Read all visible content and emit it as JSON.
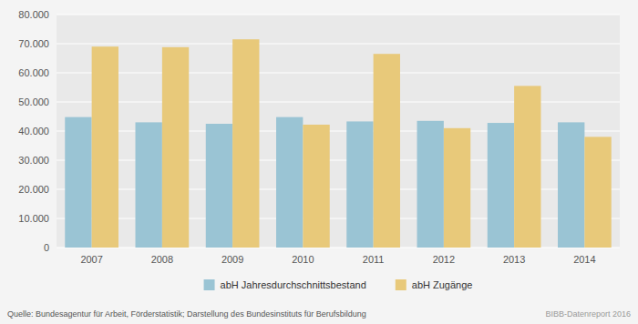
{
  "chart_data": {
    "type": "bar",
    "categories": [
      "2007",
      "2008",
      "2009",
      "2010",
      "2011",
      "2012",
      "2013",
      "2014"
    ],
    "series": [
      {
        "name": "abH Jahresdurchschnittsbestand",
        "color": "#9ac4d4",
        "values": [
          44800,
          43000,
          42500,
          44800,
          43300,
          43500,
          42800,
          43000
        ]
      },
      {
        "name": "abH Zugänge",
        "color": "#e8c97a",
        "values": [
          69000,
          68800,
          71500,
          42200,
          66500,
          41000,
          55500,
          38000
        ]
      }
    ],
    "ylim": [
      0,
      80000
    ],
    "yticks": [
      0,
      {
        "value": 10000,
        "label": "10.000"
      },
      {
        "value": 20000,
        "label": "20.000"
      },
      {
        "value": 30000,
        "label": "30.000"
      },
      {
        "value": 40000,
        "label": "40.000"
      },
      {
        "value": 50000,
        "label": "50.000"
      },
      {
        "value": 60000,
        "label": "60.000"
      },
      {
        "value": 70000,
        "label": "70.000"
      },
      {
        "value": 80000,
        "label": "80.000"
      }
    ],
    "grid": true,
    "legend": "bottom",
    "annotations": [
      "Quelle: Bundesagentur für Arbeit, Förderstatistik; Darstellung des Bundesinstituts für Berufsbildung",
      "BIBB-Datenreport 2016"
    ]
  }
}
